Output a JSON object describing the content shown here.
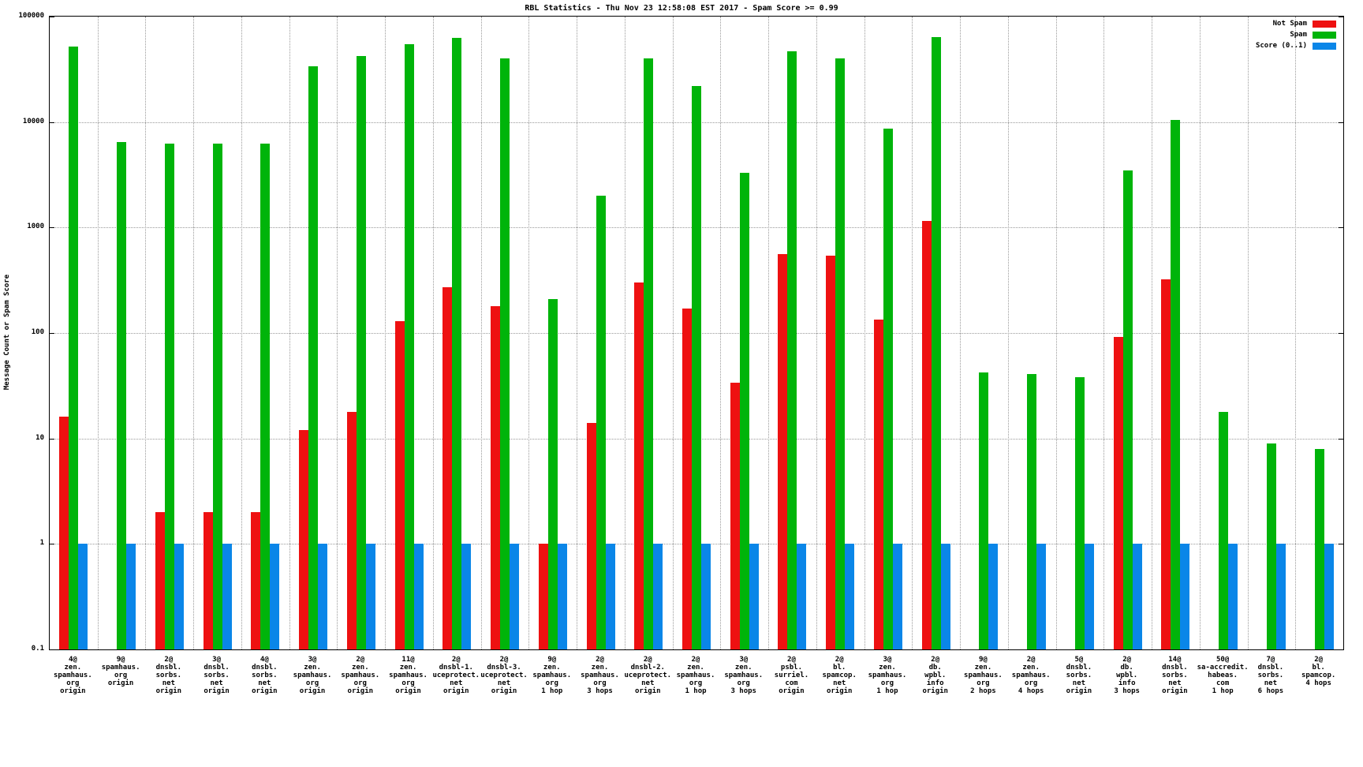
{
  "chart_data": {
    "type": "bar",
    "title": "RBL Statistics - Thu Nov 23 12:58:08 EST 2017 - Spam Score >= 0.99",
    "ylabel": "Message Count or Spam Score",
    "xlabel": "",
    "yscale": "log",
    "ylim": [
      0.1,
      100000
    ],
    "ytick_labels": [
      "0.1",
      "1",
      "10",
      "100",
      "1000",
      "10000",
      "100000"
    ],
    "grid": true,
    "legend_position": "top-right",
    "categories": [
      [
        "4@",
        "zen.",
        "spamhaus.",
        "org",
        "origin"
      ],
      [
        "9@",
        "spamhaus.",
        "org",
        "origin"
      ],
      [
        "2@",
        "dnsbl.",
        "sorbs.",
        "net",
        "origin"
      ],
      [
        "3@",
        "dnsbl.",
        "sorbs.",
        "net",
        "origin"
      ],
      [
        "4@",
        "dnsbl.",
        "sorbs.",
        "net",
        "origin"
      ],
      [
        "3@",
        "zen.",
        "spamhaus.",
        "org",
        "origin"
      ],
      [
        "2@",
        "zen.",
        "spamhaus.",
        "org",
        "origin"
      ],
      [
        "11@",
        "zen.",
        "spamhaus.",
        "org",
        "origin"
      ],
      [
        "2@",
        "dnsbl-1.",
        "uceprotect.",
        "net",
        "origin"
      ],
      [
        "2@",
        "dnsbl-3.",
        "uceprotect.",
        "net",
        "origin"
      ],
      [
        "9@",
        "zen.",
        "spamhaus.",
        "org",
        "1 hop"
      ],
      [
        "2@",
        "zen.",
        "spamhaus.",
        "org",
        "3 hops"
      ],
      [
        "2@",
        "dnsbl-2.",
        "uceprotect.",
        "net",
        "origin"
      ],
      [
        "2@",
        "zen.",
        "spamhaus.",
        "org",
        "1 hop"
      ],
      [
        "3@",
        "zen.",
        "spamhaus.",
        "org",
        "3 hops"
      ],
      [
        "2@",
        "psbl.",
        "surriel.",
        "com",
        "origin"
      ],
      [
        "2@",
        "bl.",
        "spamcop.",
        "net",
        "origin"
      ],
      [
        "3@",
        "zen.",
        "spamhaus.",
        "org",
        "1 hop"
      ],
      [
        "2@",
        "db.",
        "wpbl.",
        "info",
        "origin"
      ],
      [
        "9@",
        "zen.",
        "spamhaus.",
        "org",
        "2 hops"
      ],
      [
        "2@",
        "zen.",
        "spamhaus.",
        "org",
        "4 hops"
      ],
      [
        "5@",
        "dnsbl.",
        "sorbs.",
        "net",
        "origin"
      ],
      [
        "2@",
        "db.",
        "wpbl.",
        "info",
        "3 hops"
      ],
      [
        "14@",
        "dnsbl.",
        "sorbs.",
        "net",
        "origin"
      ],
      [
        "50@",
        "sa-accredit.",
        "habeas.",
        "com",
        "1 hop"
      ],
      [
        "7@",
        "dnsbl.",
        "sorbs.",
        "net",
        "6 hops"
      ],
      [
        "2@",
        "bl.",
        "spamcop.",
        "4 hops"
      ]
    ],
    "series": [
      {
        "name": "Not Spam",
        "color": "#ee1111",
        "values": [
          16,
          null,
          2,
          2,
          2,
          12,
          18,
          130,
          270,
          180,
          1,
          14,
          300,
          170,
          34,
          560,
          540,
          135,
          1150,
          null,
          null,
          null,
          92,
          320,
          null,
          null,
          null
        ]
      },
      {
        "name": "Spam",
        "color": "#00b40a",
        "values": [
          52000,
          6500,
          6200,
          6300,
          6300,
          34000,
          42000,
          55000,
          63000,
          40000,
          210,
          2000,
          40000,
          22000,
          3300,
          47000,
          40000,
          8600,
          64000,
          42,
          41,
          38,
          3500,
          10500,
          18,
          9,
          8
        ]
      },
      {
        "name": "Score (0..1)",
        "color": "#0a86e8",
        "values": [
          1,
          1,
          1,
          1,
          1,
          1,
          1,
          1,
          1,
          1,
          1,
          1,
          1,
          1,
          1,
          1,
          1,
          1,
          1,
          1,
          1,
          1,
          1,
          1,
          1,
          1,
          1
        ]
      }
    ]
  }
}
